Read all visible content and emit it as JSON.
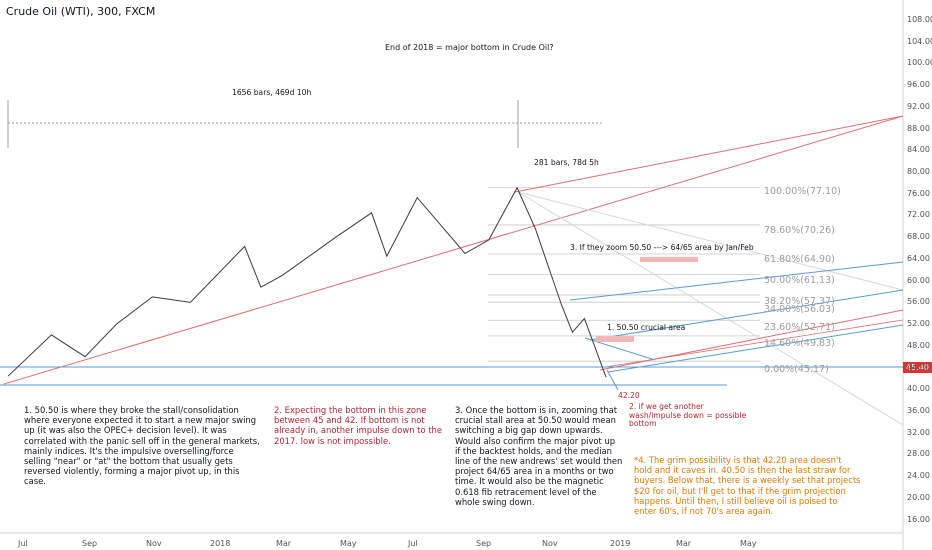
{
  "header": {
    "title": "Crude Oil (WTI), 300, FXCM"
  },
  "chart_data": {
    "type": "line",
    "title": "Crude Oil (WTI), 300, FXCM",
    "chart_title": "End of 2018 = major bottom in Crude Oil?",
    "ylim": [
      16,
      110
    ],
    "y_ticks": [
      "108.00",
      "104.00",
      "100.00",
      "96.00",
      "92.00",
      "88.00",
      "84.00",
      "80.00",
      "76.00",
      "72.00",
      "68.00",
      "64.00",
      "60.00",
      "56.00",
      "52.00",
      "48.00",
      "44.00",
      "40.00",
      "36.00",
      "32.00",
      "28.00",
      "24.00",
      "20.00",
      "16.00"
    ],
    "x_ticks": [
      "Jul",
      "Sep",
      "Nov",
      "2018",
      "Mar",
      "May",
      "Jul",
      "Sep",
      "Nov",
      "2019",
      "Mar",
      "May"
    ],
    "current_price": "45.40",
    "price_series": {
      "name": "Crude Oil (WTI)",
      "x": [
        "2017-06-21",
        "2017-07-31",
        "2017-08-31",
        "2017-09-29",
        "2017-11-01",
        "2017-12-06",
        "2018-01-25",
        "2018-02-09",
        "2018-03-01",
        "2018-04-19",
        "2018-05-22",
        "2018-06-05",
        "2018-07-03",
        "2018-08-16",
        "2018-09-07",
        "2018-10-03",
        "2018-10-20",
        "2018-11-13",
        "2018-11-23",
        "2018-12-04",
        "2018-12-24"
      ],
      "y": [
        42.4,
        50.0,
        46.0,
        52.0,
        57.0,
        56.0,
        66.3,
        58.8,
        61.0,
        68.0,
        72.5,
        64.5,
        75.3,
        65.0,
        67.5,
        77.1,
        69.5,
        55.5,
        50.5,
        53.0,
        42.2
      ]
    },
    "fib_levels": [
      {
        "label": "100.00%(77.10)",
        "value": 77.1
      },
      {
        "label": "78.60%(70.26)",
        "value": 70.26
      },
      {
        "label": "61.80%(64.90)",
        "value": 64.9
      },
      {
        "label": "50.00%(61.13)",
        "value": 61.13
      },
      {
        "label": "38.20%(57.37)",
        "value": 57.37
      },
      {
        "label": "34.00%(56.03)",
        "value": 56.03
      },
      {
        "label": "23.60%(52.71)",
        "value": 52.71
      },
      {
        "label": "14.60%(49.83)",
        "value": 49.83
      },
      {
        "label": "0.00%(45.17)",
        "value": 45.17
      }
    ],
    "annotations": {
      "bars1": "1656 bars, 469d 10h",
      "bars2": "281 bars, 78d 5h",
      "zoom": "3. If they zoom 50.50 ---> 64/65 area by Jan/Feb",
      "crucial": "1. 50.50 crucial area",
      "low_value": "42.20",
      "wash": [
        "2. if we get another",
        "wash/impulse down = possible",
        "bottom"
      ]
    }
  },
  "notes": {
    "n1": "1. 50.50 is where they broke the stall/consolidation where everyone expected it to start a new major swing up (it was also the OPEC+ decision level). It was correlated with the panic sell off in the general markets, mainly indices. It's the impulsive overselling/force selling \"near\" or \"at\" the bottom that usually gets reversed violently, forming a major pivot up, in this case.",
    "n2": "2. Expecting the bottom in this zone between 45 and 42. If bottom is not already in, another impulse down to the 2017. low is not impossible.",
    "n3": "3. Once the bottom is in, zooming that crucial stall area at 50.50 would mean switching a big gap down upwards. Would also confirm the major pivot up if the backtest holds, and the median line of the new andrews' set would then project 64/65 area in a months or two time. It would also be the magnetic 0.618 fib retracement level of the whole swing down.",
    "n4": "*4. The grim possibility is that 42.20 area doesn't hold and it caves in. 40.50 is then the last straw for buyers. Below that, there is a weekly set that projects $20 for oil, but I'll get to that if the grim projection happens. Until then, I still believe oil is poised to enter 60's, if not 70's area again."
  },
  "colors": {
    "red": "#e0312f",
    "blue": "#5b9bd5",
    "note_red": "#b22833",
    "note_orange": "#e07b00"
  }
}
